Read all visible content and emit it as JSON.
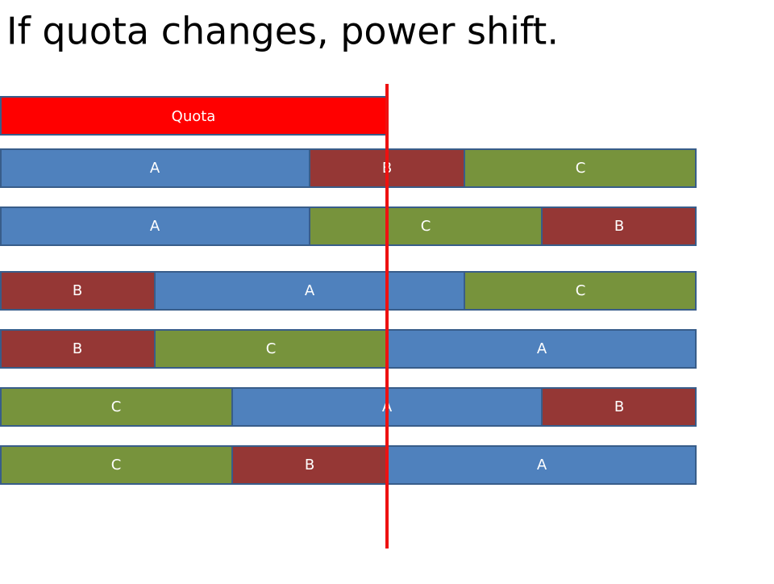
{
  "title": "If quota changes, power shift.",
  "quota": "Quota",
  "rows": [
    [
      "A",
      "B",
      "C"
    ],
    [
      "A",
      "C",
      "B"
    ],
    [
      "B",
      "A",
      "C"
    ],
    [
      "B",
      "C",
      "A"
    ],
    [
      "C",
      "A",
      "B"
    ],
    [
      "C",
      "B",
      "A"
    ]
  ]
}
